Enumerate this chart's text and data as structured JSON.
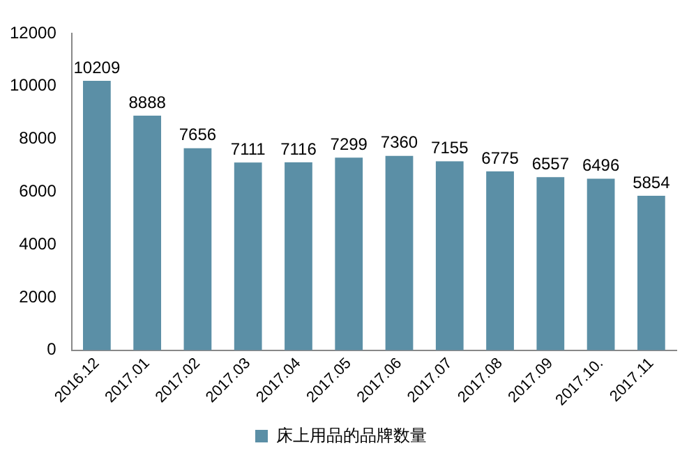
{
  "chart_data": {
    "type": "bar",
    "categories": [
      "2016.12",
      "2017.01",
      "2017.02",
      "2017.03",
      "2017.04",
      "2017.05",
      "2017.06",
      "2017.07",
      "2017.08",
      "2017.09",
      "2017.10.",
      "2017.11"
    ],
    "series": [
      {
        "name": "床上用品的品牌数量",
        "color": "#5b8fa6",
        "values": [
          10209,
          8888,
          7656,
          7111,
          7116,
          7299,
          7360,
          7155,
          6775,
          6557,
          6496,
          5854
        ]
      }
    ],
    "ylim": [
      0,
      12000
    ],
    "yticks": [
      0,
      2000,
      4000,
      6000,
      8000,
      10000,
      12000
    ],
    "grid": false,
    "legend": "bottom",
    "data_labels": true
  }
}
